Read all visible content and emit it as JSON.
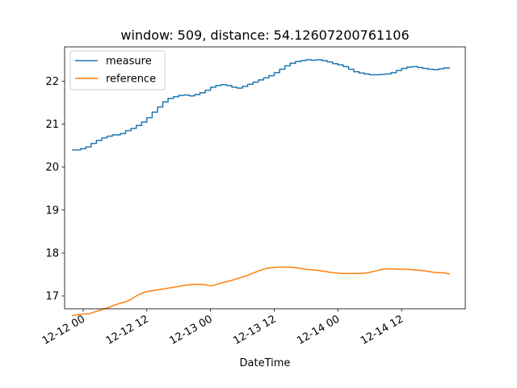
{
  "chart_data": {
    "type": "line",
    "title": "window: 509, distance: 54.12607200761106",
    "xlabel": "DateTime",
    "ylabel": "",
    "x_tick_labels": [
      "12-12 00",
      "12-12 12",
      "12-13 00",
      "12-13 12",
      "12-14 00",
      "12-14 12"
    ],
    "x_ticks": [
      "2023-12-12T00:00",
      "2023-12-12T12:00",
      "2023-12-13T00:00",
      "2023-12-13T12:00",
      "2023-12-14T00:00",
      "2023-12-14T12:00"
    ],
    "xlim": [
      "2023-12-11T20:30",
      "2023-12-15T00:00"
    ],
    "y_ticks": [
      17,
      18,
      19,
      20,
      21,
      22
    ],
    "ylim": [
      16.7,
      22.8
    ],
    "grid": false,
    "legend": {
      "placement": "top-left"
    },
    "colors": {
      "measure": "#1f77b4",
      "reference": "#ff7f0e"
    },
    "series": [
      {
        "name": "measure",
        "step": true,
        "points": [
          [
            "2023-12-11T22:00",
            20.4
          ],
          [
            "2023-12-11T23:30",
            20.43
          ],
          [
            "2023-12-12T00:30",
            20.47
          ],
          [
            "2023-12-12T01:30",
            20.55
          ],
          [
            "2023-12-12T02:30",
            20.62
          ],
          [
            "2023-12-12T03:30",
            20.68
          ],
          [
            "2023-12-12T04:30",
            20.72
          ],
          [
            "2023-12-12T05:30",
            20.75
          ],
          [
            "2023-12-12T07:00",
            20.78
          ],
          [
            "2023-12-12T08:00",
            20.85
          ],
          [
            "2023-12-12T09:00",
            20.9
          ],
          [
            "2023-12-12T10:00",
            20.97
          ],
          [
            "2023-12-12T11:00",
            21.05
          ],
          [
            "2023-12-12T12:00",
            21.15
          ],
          [
            "2023-12-12T13:00",
            21.28
          ],
          [
            "2023-12-12T14:00",
            21.4
          ],
          [
            "2023-12-12T15:00",
            21.52
          ],
          [
            "2023-12-12T16:00",
            21.6
          ],
          [
            "2023-12-12T17:00",
            21.64
          ],
          [
            "2023-12-12T18:00",
            21.67
          ],
          [
            "2023-12-12T19:00",
            21.68
          ],
          [
            "2023-12-12T20:00",
            21.66
          ],
          [
            "2023-12-12T21:00",
            21.69
          ],
          [
            "2023-12-12T22:00",
            21.73
          ],
          [
            "2023-12-12T23:00",
            21.79
          ],
          [
            "2023-12-13T00:00",
            21.86
          ],
          [
            "2023-12-13T01:00",
            21.9
          ],
          [
            "2023-12-13T02:00",
            21.92
          ],
          [
            "2023-12-13T03:00",
            21.9
          ],
          [
            "2023-12-13T04:00",
            21.86
          ],
          [
            "2023-12-13T05:00",
            21.84
          ],
          [
            "2023-12-13T06:00",
            21.88
          ],
          [
            "2023-12-13T07:00",
            21.93
          ],
          [
            "2023-12-13T08:00",
            21.98
          ],
          [
            "2023-12-13T09:00",
            22.03
          ],
          [
            "2023-12-13T10:00",
            22.08
          ],
          [
            "2023-12-13T11:00",
            22.13
          ],
          [
            "2023-12-13T12:00",
            22.2
          ],
          [
            "2023-12-13T13:00",
            22.28
          ],
          [
            "2023-12-13T14:00",
            22.36
          ],
          [
            "2023-12-13T15:00",
            22.42
          ],
          [
            "2023-12-13T16:00",
            22.46
          ],
          [
            "2023-12-13T17:00",
            22.48
          ],
          [
            "2023-12-13T18:00",
            22.5
          ],
          [
            "2023-12-13T19:00",
            22.49
          ],
          [
            "2023-12-13T20:00",
            22.5
          ],
          [
            "2023-12-13T21:00",
            22.48
          ],
          [
            "2023-12-13T22:00",
            22.45
          ],
          [
            "2023-12-13T23:00",
            22.41
          ],
          [
            "2023-12-14T00:00",
            22.38
          ],
          [
            "2023-12-14T01:00",
            22.34
          ],
          [
            "2023-12-14T02:00",
            22.28
          ],
          [
            "2023-12-14T03:00",
            22.22
          ],
          [
            "2023-12-14T04:00",
            22.19
          ],
          [
            "2023-12-14T05:00",
            22.17
          ],
          [
            "2023-12-14T06:00",
            22.15
          ],
          [
            "2023-12-14T07:00",
            22.15
          ],
          [
            "2023-12-14T08:00",
            22.16
          ],
          [
            "2023-12-14T09:00",
            22.17
          ],
          [
            "2023-12-14T10:00",
            22.2
          ],
          [
            "2023-12-14T11:00",
            22.25
          ],
          [
            "2023-12-14T12:00",
            22.3
          ],
          [
            "2023-12-14T13:00",
            22.33
          ],
          [
            "2023-12-14T14:00",
            22.34
          ],
          [
            "2023-12-14T15:00",
            22.32
          ],
          [
            "2023-12-14T16:00",
            22.3
          ],
          [
            "2023-12-14T17:00",
            22.28
          ],
          [
            "2023-12-14T18:00",
            22.27
          ],
          [
            "2023-12-14T19:00",
            22.29
          ],
          [
            "2023-12-14T20:00",
            22.31
          ],
          [
            "2023-12-14T21:00",
            22.31
          ]
        ]
      },
      {
        "name": "reference",
        "step": false,
        "points": [
          [
            "2023-12-11T22:00",
            16.54
          ],
          [
            "2023-12-11T23:00",
            16.56
          ],
          [
            "2023-12-12T00:00",
            16.58
          ],
          [
            "2023-12-12T01:00",
            16.58
          ],
          [
            "2023-12-12T02:00",
            16.62
          ],
          [
            "2023-12-12T03:00",
            16.66
          ],
          [
            "2023-12-12T04:00",
            16.7
          ],
          [
            "2023-12-12T05:00",
            16.74
          ],
          [
            "2023-12-12T06:00",
            16.79
          ],
          [
            "2023-12-12T07:00",
            16.83
          ],
          [
            "2023-12-12T08:00",
            16.86
          ],
          [
            "2023-12-12T09:00",
            16.92
          ],
          [
            "2023-12-12T10:00",
            17.0
          ],
          [
            "2023-12-12T11:00",
            17.06
          ],
          [
            "2023-12-12T12:00",
            17.1
          ],
          [
            "2023-12-12T13:00",
            17.12
          ],
          [
            "2023-12-12T14:00",
            17.14
          ],
          [
            "2023-12-12T15:00",
            17.16
          ],
          [
            "2023-12-12T16:00",
            17.18
          ],
          [
            "2023-12-12T17:00",
            17.2
          ],
          [
            "2023-12-12T18:00",
            17.22
          ],
          [
            "2023-12-12T19:00",
            17.24
          ],
          [
            "2023-12-12T20:00",
            17.26
          ],
          [
            "2023-12-12T21:00",
            17.27
          ],
          [
            "2023-12-12T22:00",
            17.27
          ],
          [
            "2023-12-12T23:00",
            17.26
          ],
          [
            "2023-12-13T00:00",
            17.23
          ],
          [
            "2023-12-13T01:00",
            17.26
          ],
          [
            "2023-12-13T02:00",
            17.3
          ],
          [
            "2023-12-13T03:00",
            17.33
          ],
          [
            "2023-12-13T04:00",
            17.36
          ],
          [
            "2023-12-13T05:00",
            17.4
          ],
          [
            "2023-12-13T06:00",
            17.44
          ],
          [
            "2023-12-13T07:00",
            17.48
          ],
          [
            "2023-12-13T08:00",
            17.53
          ],
          [
            "2023-12-13T09:00",
            17.58
          ],
          [
            "2023-12-13T10:00",
            17.62
          ],
          [
            "2023-12-13T11:00",
            17.65
          ],
          [
            "2023-12-13T12:00",
            17.66
          ],
          [
            "2023-12-13T13:00",
            17.67
          ],
          [
            "2023-12-13T14:00",
            17.67
          ],
          [
            "2023-12-13T15:00",
            17.67
          ],
          [
            "2023-12-13T16:00",
            17.66
          ],
          [
            "2023-12-13T17:00",
            17.64
          ],
          [
            "2023-12-13T18:00",
            17.62
          ],
          [
            "2023-12-13T19:00",
            17.61
          ],
          [
            "2023-12-13T20:00",
            17.6
          ],
          [
            "2023-12-13T21:00",
            17.58
          ],
          [
            "2023-12-13T22:00",
            17.56
          ],
          [
            "2023-12-13T23:00",
            17.54
          ],
          [
            "2023-12-14T00:00",
            17.53
          ],
          [
            "2023-12-14T01:00",
            17.52
          ],
          [
            "2023-12-14T02:00",
            17.52
          ],
          [
            "2023-12-14T03:00",
            17.52
          ],
          [
            "2023-12-14T04:00",
            17.52
          ],
          [
            "2023-12-14T05:00",
            17.53
          ],
          [
            "2023-12-14T06:00",
            17.55
          ],
          [
            "2023-12-14T07:00",
            17.58
          ],
          [
            "2023-12-14T08:00",
            17.61
          ],
          [
            "2023-12-14T09:00",
            17.63
          ],
          [
            "2023-12-14T10:00",
            17.63
          ],
          [
            "2023-12-14T11:00",
            17.62
          ],
          [
            "2023-12-14T12:00",
            17.62
          ],
          [
            "2023-12-14T13:00",
            17.62
          ],
          [
            "2023-12-14T14:00",
            17.61
          ],
          [
            "2023-12-14T15:00",
            17.6
          ],
          [
            "2023-12-14T16:00",
            17.59
          ],
          [
            "2023-12-14T17:00",
            17.57
          ],
          [
            "2023-12-14T18:00",
            17.55
          ],
          [
            "2023-12-14T19:00",
            17.54
          ],
          [
            "2023-12-14T20:00",
            17.54
          ],
          [
            "2023-12-14T21:00",
            17.51
          ]
        ]
      }
    ]
  }
}
